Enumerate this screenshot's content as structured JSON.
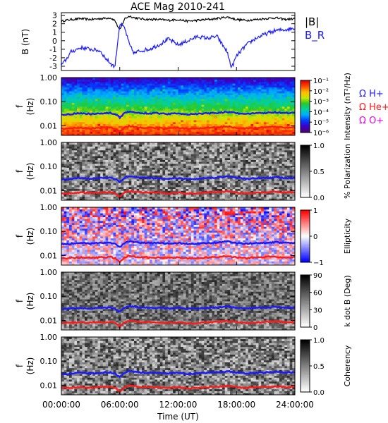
{
  "title": "ACE Mag 2010-241",
  "colors": {
    "total_field": "#000000",
    "radial_field": "#1a1aff",
    "h_cyclotron": "#1a1aff",
    "he_cyclotron": "#ff1a1a",
    "o_cyclotron": "#e600e6"
  },
  "chart_data": [
    {
      "type": "line",
      "panel": "magnetic-field",
      "ylabel": "B (nT)",
      "ylim": [
        -3.5,
        3.3
      ],
      "yticks": [
        "3",
        "2",
        "1",
        "0",
        "-1",
        "-2",
        "-3"
      ],
      "xlim_hours": [
        0,
        24
      ],
      "legend": [
        "|B|",
        "B_R"
      ],
      "series": [
        {
          "name": "|B|",
          "x_hours": [
            0,
            1,
            2,
            3,
            4,
            5,
            5.5,
            6,
            6.5,
            7,
            7.5,
            8,
            9,
            10,
            11,
            12,
            13,
            14,
            15,
            16,
            17,
            18,
            19,
            20,
            21,
            22,
            23,
            24
          ],
          "values": [
            2.3,
            2.5,
            2.6,
            2.5,
            2.6,
            2.7,
            2.4,
            1.2,
            2.6,
            2.9,
            2.7,
            2.6,
            2.5,
            2.5,
            2.4,
            2.5,
            2.3,
            2.4,
            2.5,
            2.6,
            2.8,
            2.5,
            2.4,
            2.5,
            2.6,
            2.7,
            2.5,
            2.6
          ]
        },
        {
          "name": "B_R",
          "x_hours": [
            0,
            0.5,
            1,
            2,
            3,
            4,
            4.5,
            5,
            5.5,
            6,
            6.5,
            7,
            7.5,
            8,
            9,
            10,
            11,
            12,
            13,
            14,
            15,
            16,
            16.5,
            17,
            17.5,
            18,
            19,
            20,
            21,
            22,
            23,
            24
          ],
          "values": [
            -2.9,
            -2.2,
            -1.3,
            -0.8,
            -1.0,
            -1.2,
            -2.0,
            -2.6,
            -3.1,
            2.0,
            1.5,
            -0.5,
            -1.5,
            -1.2,
            -1.0,
            -0.5,
            0.2,
            -0.5,
            0.0,
            0.5,
            0.3,
            0.5,
            -0.4,
            -1.2,
            -3.2,
            -1.8,
            -0.5,
            0.3,
            0.8,
            1.2,
            1.3,
            1.5
          ]
        }
      ]
    },
    {
      "type": "heatmap",
      "panel": "power-spectrum",
      "ylabel": "f (Hz)",
      "yticks": [
        "1.00",
        "0.10",
        "0.01"
      ],
      "colorbar_label": "Intensity (nT²/Hz)",
      "colorbar_ticks": [
        "10⁻¹",
        "10⁻²",
        "10⁻³",
        "10⁻⁴",
        "10⁻⁵",
        "10⁻⁶"
      ],
      "colorscale": "rainbow",
      "legend": [
        "Ω H+",
        "Ω He+",
        "Ω O+"
      ]
    },
    {
      "type": "heatmap",
      "panel": "polarization",
      "ylabel": "f (Hz)",
      "yticks": [
        "1.00",
        "0.10",
        "0.01"
      ],
      "colorbar_label": "% Polarization",
      "colorbar_ticks": [
        "1.0",
        "0.5",
        "0.0"
      ],
      "colorscale": "grayscale"
    },
    {
      "type": "heatmap",
      "panel": "ellipticity",
      "ylabel": "f (Hz)",
      "yticks": [
        "1.00",
        "0.10",
        "0.01"
      ],
      "colorbar_label": "Ellipticity",
      "colorbar_ticks": [
        "1",
        "0",
        "−1"
      ],
      "colorscale": "blue-white-red"
    },
    {
      "type": "heatmap",
      "panel": "wave-normal-angle",
      "ylabel": "f (Hz)",
      "yticks": [
        "1.00",
        "0.10",
        "0.01"
      ],
      "colorbar_label": "k dot B (Deg)",
      "colorbar_ticks": [
        "90",
        "60",
        "30",
        "0"
      ],
      "colorscale": "grayscale"
    },
    {
      "type": "heatmap",
      "panel": "coherency",
      "ylabel": "f (Hz)",
      "yticks": [
        "1.00",
        "0.10",
        "0.01"
      ],
      "colorbar_label": "Coherency",
      "colorbar_ticks": [
        "1.0",
        "0.5",
        "0.0"
      ],
      "colorscale": "grayscale",
      "xlabel": "Time (UT)",
      "xticks": [
        "00:00:00",
        "06:00:00",
        "12:00:00",
        "18:00:00",
        "24:00:00"
      ]
    }
  ],
  "cyclotron_overlay": {
    "x_hours": [
      0,
      1,
      2,
      3,
      4,
      5,
      5.5,
      6,
      6.5,
      7,
      7.5,
      8,
      9,
      10,
      11,
      12,
      13,
      14,
      15,
      16,
      17,
      18,
      19,
      20,
      21,
      22,
      23,
      24
    ],
    "h_plus_hz": [
      0.029,
      0.031,
      0.033,
      0.031,
      0.033,
      0.034,
      0.031,
      0.022,
      0.033,
      0.039,
      0.036,
      0.034,
      0.033,
      0.033,
      0.031,
      0.033,
      0.03,
      0.031,
      0.033,
      0.034,
      0.038,
      0.033,
      0.031,
      0.033,
      0.034,
      0.036,
      0.033,
      0.034
    ],
    "he_plus_hz": [
      0.0074,
      0.0079,
      0.0083,
      0.0079,
      0.0083,
      0.0086,
      0.0078,
      0.0055,
      0.0083,
      0.0098,
      0.009,
      0.0086,
      0.0083,
      0.0083,
      0.0078,
      0.0083,
      0.0075,
      0.0078,
      0.0083,
      0.0086,
      0.0095,
      0.0083,
      0.0078,
      0.0083,
      0.0086,
      0.009,
      0.0083,
      0.0086
    ]
  }
}
